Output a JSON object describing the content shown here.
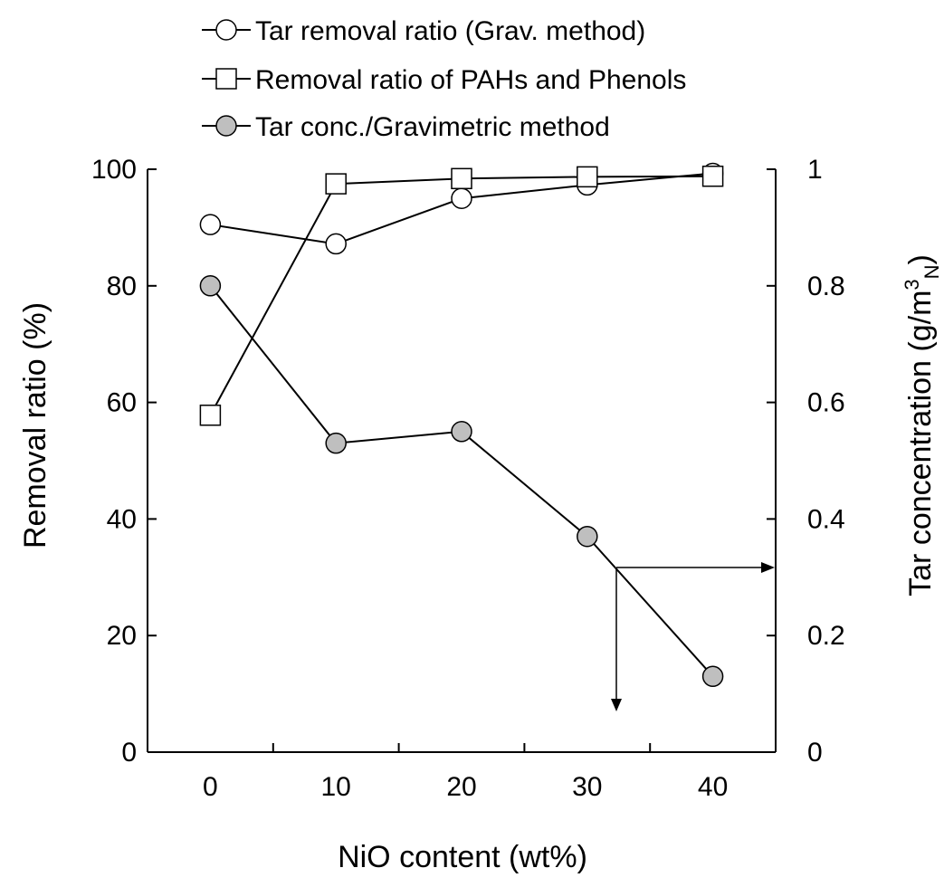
{
  "chart_data": {
    "type": "line",
    "title": "",
    "xlabel": "NiO content  (wt%)",
    "ylabel": "Removal ratio (%)",
    "y2label_main": "Tar concentration (g/m",
    "y2label_sup": "3",
    "y2label_sub": "N",
    "y2label_end": ")",
    "x": [
      0,
      10,
      20,
      30,
      40
    ],
    "xlim": [
      -5,
      45
    ],
    "ylim": [
      0,
      100
    ],
    "y2lim": [
      0,
      1
    ],
    "xticks": [
      "0",
      "10",
      "20",
      "30",
      "40"
    ],
    "yticks": [
      "0",
      "20",
      "40",
      "60",
      "80",
      "100"
    ],
    "y2ticks": [
      "0",
      "0.2",
      "0.4",
      "0.6",
      "0.8",
      "1"
    ],
    "grid": false,
    "legend": "top",
    "series": [
      {
        "name": "Tar removal ratio (Grav. method)",
        "axis": "left",
        "marker": "circle-open",
        "values": [
          90.5,
          87.2,
          95.0,
          97.3,
          99.3
        ]
      },
      {
        "name": "Removal ratio of PAHs and Phenols",
        "axis": "left",
        "marker": "square-open",
        "values": [
          57.8,
          97.5,
          98.4,
          98.7,
          98.8
        ]
      },
      {
        "name": "Tar conc./Gravimetric method",
        "axis": "right",
        "marker": "circle-filled",
        "values": [
          0.8,
          0.53,
          0.55,
          0.37,
          0.13
        ]
      }
    ]
  }
}
